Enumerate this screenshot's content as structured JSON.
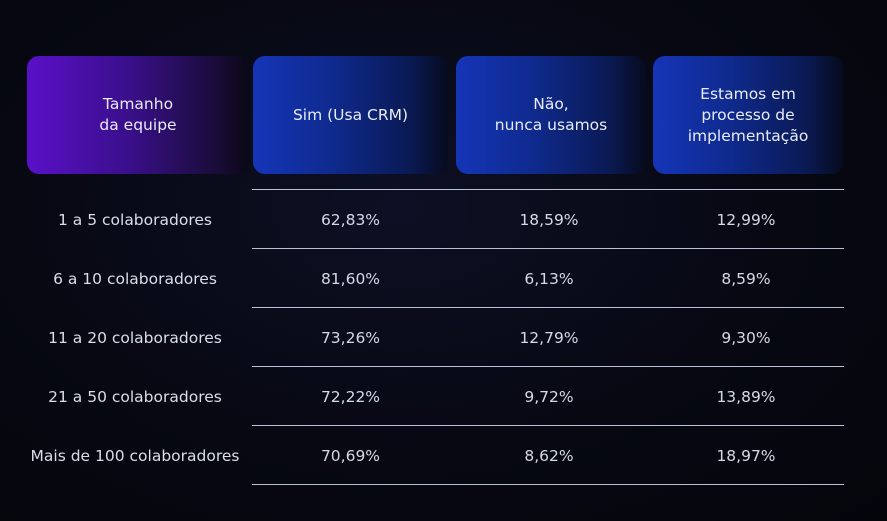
{
  "chart_data": {
    "type": "table",
    "columns": [
      "Tamanho\nda equipe",
      "Sim (Usa CRM)",
      "Não,\nnunca usamos",
      "Estamos em\nprocesso de\nimplementação"
    ],
    "rows": [
      {
        "team": "1 a 5 colaboradores",
        "values": [
          "62,83%",
          "18,59%",
          "12,99%"
        ]
      },
      {
        "team": "6 a 10 colaboradores",
        "values": [
          "81,60%",
          "6,13%",
          "8,59%"
        ]
      },
      {
        "team": "11 a 20 colaboradores",
        "values": [
          "73,26%",
          "12,79%",
          "9,30%"
        ]
      },
      {
        "team": "21 a 50 colaboradores",
        "values": [
          "72,22%",
          "9,72%",
          "13,89%"
        ]
      },
      {
        "team": "Mais de 100 colaboradores",
        "values": [
          "70,69%",
          "8,62%",
          "18,97%"
        ]
      }
    ]
  },
  "colors": {
    "background": "#05060d",
    "team_header_accent": "#5a10c8",
    "column_header_accent": "#1535b8",
    "divider": "#b9c1d6",
    "text": "#d4d9e6"
  }
}
